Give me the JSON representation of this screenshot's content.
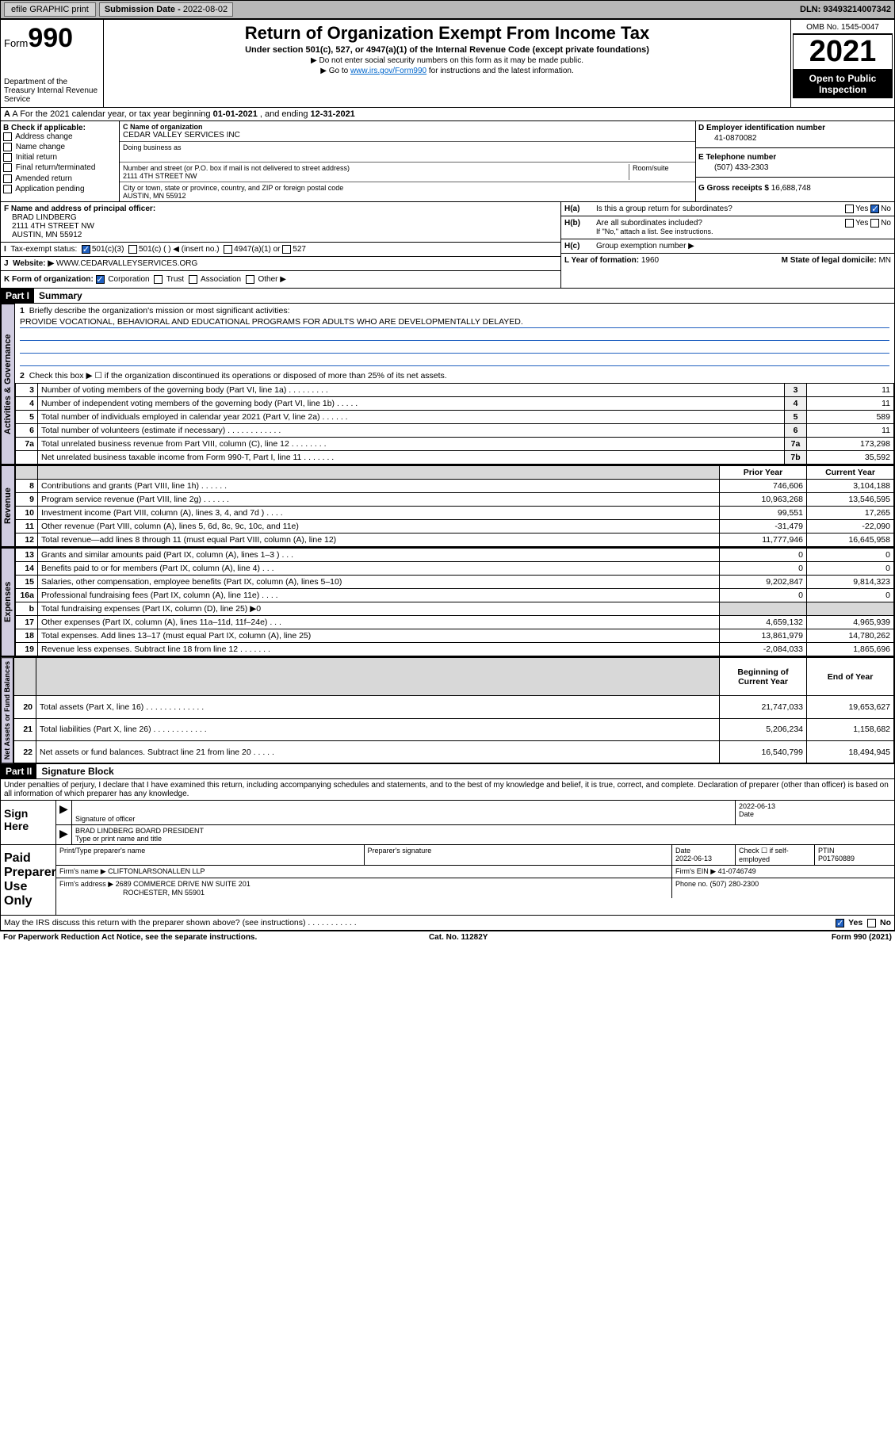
{
  "topbar": {
    "efile": "efile GRAPHIC print",
    "subdate_label": "Submission Date - ",
    "subdate": "2022-08-02",
    "dln_label": "DLN: ",
    "dln": "93493214007342"
  },
  "header": {
    "form_prefix": "Form",
    "form_num": "990",
    "dept": "Department of the Treasury\nInternal Revenue Service",
    "title": "Return of Organization Exempt From Income Tax",
    "subtitle": "Under section 501(c), 527, or 4947(a)(1) of the Internal Revenue Code (except private foundations)",
    "note1": "▶ Do not enter social security numbers on this form as it may be made public.",
    "note2_pre": "▶ Go to ",
    "note2_link": "www.irs.gov/Form990",
    "note2_post": " for instructions and the latest information.",
    "omb": "OMB No. 1545-0047",
    "year": "2021",
    "inspect": "Open to Public Inspection"
  },
  "row_a": {
    "label": "A For the 2021 calendar year, or tax year beginning ",
    "begin": "01-01-2021",
    "mid": " , and ending ",
    "end": "12-31-2021"
  },
  "col_b": {
    "label": "B Check if applicable:",
    "items": [
      "Address change",
      "Name change",
      "Initial return",
      "Final return/terminated",
      "Amended return",
      "Application pending"
    ]
  },
  "col_c": {
    "name_label": "C Name of organization",
    "name": "CEDAR VALLEY SERVICES INC",
    "dba_label": "Doing business as",
    "dba": "",
    "street_label": "Number and street (or P.O. box if mail is not delivered to street address)",
    "room_label": "Room/suite",
    "street": "2111 4TH STREET NW",
    "city_label": "City or town, state or province, country, and ZIP or foreign postal code",
    "city": "AUSTIN, MN  55912"
  },
  "col_d": {
    "ein_label": "D Employer identification number",
    "ein": "41-0870082",
    "tel_label": "E Telephone number",
    "tel": "(507) 433-2303",
    "gross_label": "G Gross receipts $ ",
    "gross": "16,688,748"
  },
  "row_f": {
    "label": "F  Name and address of principal officer:",
    "name": "BRAD LINDBERG",
    "street": "2111 4TH STREET NW",
    "city": "AUSTIN, MN  55912"
  },
  "row_i": {
    "label": "Tax-exempt status:",
    "opts": [
      "501(c)(3)",
      "501(c) (  ) ◀ (insert no.)",
      "4947(a)(1) or",
      "527"
    ]
  },
  "row_j": {
    "label": "Website: ▶ ",
    "val": "WWW.CEDARVALLEYSERVICES.ORG"
  },
  "row_k": {
    "label": "K Form of organization: ",
    "opts": [
      "Corporation",
      "Trust",
      "Association",
      "Other ▶"
    ]
  },
  "row_h": {
    "ha": "H(a)  Is this a group return for subordinates?",
    "hb": "H(b)  Are all subordinates included?",
    "hb_note": "If \"No,\" attach a list. See instructions.",
    "hc": "H(c)  Group exemption number ▶",
    "yes": "Yes",
    "no": "No"
  },
  "row_lm": {
    "l_label": "L Year of formation: ",
    "l_val": "1960",
    "m_label": "M State of legal domicile: ",
    "m_val": "MN"
  },
  "part1": {
    "hdr": "Part I",
    "title": "Summary",
    "tab_gov": "Activities & Governance",
    "tab_rev": "Revenue",
    "tab_exp": "Expenses",
    "tab_net": "Net Assets or Fund Balances",
    "q1": "Briefly describe the organization's mission or most significant activities:",
    "q1_val": "PROVIDE VOCATIONAL, BEHAVIORAL AND EDUCATIONAL PROGRAMS FOR ADULTS WHO ARE DEVELOPMENTALLY DELAYED.",
    "q2": "Check this box ▶ ☐  if the organization discontinued its operations or disposed of more than 25% of its net assets.",
    "rows_top": [
      {
        "n": "3",
        "d": "Number of voting members of the governing body (Part VI, line 1a)  .    .    .    .    .    .    .    .    .",
        "b": "3",
        "v": "11"
      },
      {
        "n": "4",
        "d": "Number of independent voting members of the governing body (Part VI, line 1b)   .    .    .    .    .",
        "b": "4",
        "v": "11"
      },
      {
        "n": "5",
        "d": "Total number of individuals employed in calendar year 2021 (Part V, line 2a)   .    .    .    .    .    .",
        "b": "5",
        "v": "589"
      },
      {
        "n": "6",
        "d": "Total number of volunteers (estimate if necessary)   .    .    .    .    .    .    .    .    .    .    .    .",
        "b": "6",
        "v": "11"
      },
      {
        "n": "7a",
        "d": "Total unrelated business revenue from Part VIII, column (C), line 12   .    .    .    .    .    .    .    .",
        "b": "7a",
        "v": "173,298"
      },
      {
        "n": "",
        "d": "Net unrelated business taxable income from Form 990-T, Part I, line 11   .    .    .    .    .    .    .",
        "b": "7b",
        "v": "35,592"
      }
    ],
    "col_prior": "Prior Year",
    "col_curr": "Current Year",
    "rows_rev": [
      {
        "n": "8",
        "d": "Contributions and grants (Part VIII, line 1h)   .    .    .    .    .    .",
        "p": "746,606",
        "c": "3,104,188"
      },
      {
        "n": "9",
        "d": "Program service revenue (Part VIII, line 2g)   .    .    .    .    .    .",
        "p": "10,963,268",
        "c": "13,546,595"
      },
      {
        "n": "10",
        "d": "Investment income (Part VIII, column (A), lines 3, 4, and 7d )   .    .    .    .",
        "p": "99,551",
        "c": "17,265"
      },
      {
        "n": "11",
        "d": "Other revenue (Part VIII, column (A), lines 5, 6d, 8c, 9c, 10c, and 11e)",
        "p": "-31,479",
        "c": "-22,090"
      },
      {
        "n": "12",
        "d": "Total revenue—add lines 8 through 11 (must equal Part VIII, column (A), line 12)",
        "p": "11,777,946",
        "c": "16,645,958"
      }
    ],
    "rows_exp": [
      {
        "n": "13",
        "d": "Grants and similar amounts paid (Part IX, column (A), lines 1–3 )   .    .    .",
        "p": "0",
        "c": "0"
      },
      {
        "n": "14",
        "d": "Benefits paid to or for members (Part IX, column (A), line 4)   .    .    .",
        "p": "0",
        "c": "0"
      },
      {
        "n": "15",
        "d": "Salaries, other compensation, employee benefits (Part IX, column (A), lines 5–10)",
        "p": "9,202,847",
        "c": "9,814,323"
      },
      {
        "n": "16a",
        "d": "Professional fundraising fees (Part IX, column (A), line 11e)   .    .    .    .",
        "p": "0",
        "c": "0"
      },
      {
        "n": "b",
        "d": "Total fundraising expenses (Part IX, column (D), line 25) ▶0",
        "p": "",
        "c": "",
        "shade": true
      },
      {
        "n": "17",
        "d": "Other expenses (Part IX, column (A), lines 11a–11d, 11f–24e)   .    .    .",
        "p": "4,659,132",
        "c": "4,965,939"
      },
      {
        "n": "18",
        "d": "Total expenses. Add lines 13–17 (must equal Part IX, column (A), line 25)",
        "p": "13,861,979",
        "c": "14,780,262"
      },
      {
        "n": "19",
        "d": "Revenue less expenses. Subtract line 18 from line 12   .    .    .    .    .    .    .",
        "p": "-2,084,033",
        "c": "1,865,696"
      }
    ],
    "col_boy": "Beginning of Current Year",
    "col_eoy": "End of Year",
    "rows_net": [
      {
        "n": "20",
        "d": "Total assets (Part X, line 16)   .    .    .    .    .    .    .    .    .    .    .    .    .",
        "p": "21,747,033",
        "c": "19,653,627"
      },
      {
        "n": "21",
        "d": "Total liabilities (Part X, line 26)   .    .    .    .    .    .    .    .    .    .    .    .",
        "p": "5,206,234",
        "c": "1,158,682"
      },
      {
        "n": "22",
        "d": "Net assets or fund balances. Subtract line 21 from line 20   .    .    .    .    .",
        "p": "16,540,799",
        "c": "18,494,945"
      }
    ]
  },
  "part2": {
    "hdr": "Part II",
    "title": "Signature Block",
    "intro": "Under penalties of perjury, I declare that I have examined this return, including accompanying schedules and statements, and to the best of my knowledge and belief, it is true, correct, and complete. Declaration of preparer (other than officer) is based on all information of which preparer has any knowledge."
  },
  "sign": {
    "label": "Sign Here",
    "sig_label": "Signature of officer",
    "date_label": "Date",
    "date": "2022-06-13",
    "name_label": "Type or print name and title",
    "name": "BRAD LINDBERG  BOARD PRESIDENT"
  },
  "paid": {
    "label": "Paid Preparer Use Only",
    "col1": "Print/Type preparer's name",
    "col2": "Preparer's signature",
    "col3_label": "Date",
    "col3": "2022-06-13",
    "col4_label": "Check ☐ if self-employed",
    "col5_label": "PTIN",
    "col5": "P01760889",
    "firm_label": "Firm's name     ▶ ",
    "firm": "CLIFTONLARSONALLEN LLP",
    "ein_label": "Firm's EIN ▶ ",
    "ein": "41-0746749",
    "addr_label": "Firm's address ▶ ",
    "addr1": "2689 COMMERCE DRIVE NW SUITE 201",
    "addr2": "ROCHESTER, MN  55901",
    "phone_label": "Phone no. ",
    "phone": "(507) 280-2300",
    "discuss": "May the IRS discuss this return with the preparer shown above? (see instructions)   .    .    .    .    .    .    .    .    .    .    .",
    "yes": "Yes",
    "no": "No"
  },
  "foot": {
    "l": "For Paperwork Reduction Act Notice, see the separate instructions.",
    "c": "Cat. No. 11282Y",
    "r": "Form 990 (2021)"
  }
}
